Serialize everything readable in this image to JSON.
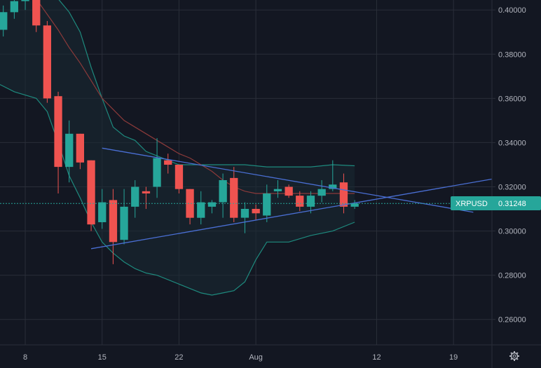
{
  "colors": {
    "background": "#131722",
    "grid": "#2a2e39",
    "up": "#26a69a",
    "down": "#ef5350",
    "band": "#1e8a7e",
    "band_fill": "#1a2a33",
    "basis": "#8b3a3a",
    "trendline": "#4a6fd4",
    "axis_text": "#b2b5be",
    "badge": "#26a69a"
  },
  "icons": {
    "settings": "gear-icon"
  },
  "price_badge": {
    "symbol": "XRPUSD",
    "price": "0.31248"
  },
  "chart_data": {
    "type": "candlestick",
    "symbol": "XRPUSD",
    "ylim": [
      0.2485,
      0.4045
    ],
    "y_ticks": [
      "0.40000",
      "0.38000",
      "0.36000",
      "0.34000",
      "0.32000",
      "0.30000",
      "0.28000",
      "0.26000"
    ],
    "x_ticks": [
      {
        "label": "8",
        "day": 8
      },
      {
        "label": "15",
        "day": 15
      },
      {
        "label": "22",
        "day": 22
      },
      {
        "label": "Aug",
        "day": 29
      },
      {
        "label": "12",
        "day": 40
      },
      {
        "label": "19",
        "day": 47
      }
    ],
    "x_range_days": [
      5.7,
      50.5
    ],
    "last_price": 0.31248,
    "candles": [
      {
        "day": 5,
        "o": 0.38,
        "h": 0.393,
        "l": 0.377,
        "c": 0.391
      },
      {
        "day": 6,
        "o": 0.391,
        "h": 0.402,
        "l": 0.388,
        "c": 0.399
      },
      {
        "day": 7,
        "o": 0.399,
        "h": 0.412,
        "l": 0.396,
        "c": 0.404
      },
      {
        "day": 8,
        "o": 0.404,
        "h": 0.415,
        "l": 0.4,
        "c": 0.408
      },
      {
        "day": 9,
        "o": 0.408,
        "h": 0.411,
        "l": 0.39,
        "c": 0.393
      },
      {
        "day": 10,
        "o": 0.393,
        "h": 0.395,
        "l": 0.358,
        "c": 0.36
      },
      {
        "day": 11,
        "o": 0.361,
        "h": 0.363,
        "l": 0.317,
        "c": 0.329
      },
      {
        "day": 12,
        "o": 0.329,
        "h": 0.35,
        "l": 0.322,
        "c": 0.344
      },
      {
        "day": 13,
        "o": 0.344,
        "h": 0.344,
        "l": 0.328,
        "c": 0.331
      },
      {
        "day": 14,
        "o": 0.332,
        "h": 0.332,
        "l": 0.3,
        "c": 0.303
      },
      {
        "day": 15,
        "o": 0.304,
        "h": 0.319,
        "l": 0.301,
        "c": 0.313
      },
      {
        "day": 16,
        "o": 0.314,
        "h": 0.319,
        "l": 0.285,
        "c": 0.295
      },
      {
        "day": 17,
        "o": 0.296,
        "h": 0.319,
        "l": 0.294,
        "c": 0.311
      },
      {
        "day": 18,
        "o": 0.311,
        "h": 0.323,
        "l": 0.306,
        "c": 0.32
      },
      {
        "day": 19,
        "o": 0.318,
        "h": 0.32,
        "l": 0.31,
        "c": 0.317
      },
      {
        "day": 20,
        "o": 0.32,
        "h": 0.342,
        "l": 0.315,
        "c": 0.333
      },
      {
        "day": 21,
        "o": 0.332,
        "h": 0.335,
        "l": 0.326,
        "c": 0.33
      },
      {
        "day": 22,
        "o": 0.33,
        "h": 0.33,
        "l": 0.317,
        "c": 0.319
      },
      {
        "day": 23,
        "o": 0.319,
        "h": 0.319,
        "l": 0.303,
        "c": 0.306
      },
      {
        "day": 24,
        "o": 0.306,
        "h": 0.318,
        "l": 0.303,
        "c": 0.313
      },
      {
        "day": 25,
        "o": 0.311,
        "h": 0.314,
        "l": 0.308,
        "c": 0.313
      },
      {
        "day": 26,
        "o": 0.313,
        "h": 0.326,
        "l": 0.306,
        "c": 0.323
      },
      {
        "day": 27,
        "o": 0.324,
        "h": 0.329,
        "l": 0.304,
        "c": 0.306
      },
      {
        "day": 28,
        "o": 0.306,
        "h": 0.313,
        "l": 0.299,
        "c": 0.31
      },
      {
        "day": 29,
        "o": 0.31,
        "h": 0.312,
        "l": 0.305,
        "c": 0.308
      },
      {
        "day": 30,
        "o": 0.307,
        "h": 0.321,
        "l": 0.304,
        "c": 0.317
      },
      {
        "day": 31,
        "o": 0.318,
        "h": 0.323,
        "l": 0.315,
        "c": 0.319
      },
      {
        "day": 32,
        "o": 0.32,
        "h": 0.321,
        "l": 0.315,
        "c": 0.316
      },
      {
        "day": 33,
        "o": 0.316,
        "h": 0.318,
        "l": 0.309,
        "c": 0.311
      },
      {
        "day": 34,
        "o": 0.311,
        "h": 0.318,
        "l": 0.308,
        "c": 0.316
      },
      {
        "day": 35,
        "o": 0.316,
        "h": 0.323,
        "l": 0.313,
        "c": 0.319
      },
      {
        "day": 36,
        "o": 0.319,
        "h": 0.332,
        "l": 0.318,
        "c": 0.321
      },
      {
        "day": 37,
        "o": 0.322,
        "h": 0.326,
        "l": 0.308,
        "c": 0.311
      },
      {
        "day": 38,
        "o": 0.311,
        "h": 0.314,
        "l": 0.31,
        "c": 0.3125
      }
    ],
    "bollinger": {
      "upper": [
        [
          5,
          0.465
        ],
        [
          7,
          0.44
        ],
        [
          9,
          0.43
        ],
        [
          10,
          0.42
        ],
        [
          11,
          0.405
        ],
        [
          12,
          0.399
        ],
        [
          13,
          0.39
        ],
        [
          14,
          0.374
        ],
        [
          15,
          0.36
        ],
        [
          16,
          0.347
        ],
        [
          17,
          0.343
        ],
        [
          18,
          0.341
        ],
        [
          19,
          0.336
        ],
        [
          20,
          0.334
        ],
        [
          21,
          0.332
        ],
        [
          22,
          0.33
        ],
        [
          24,
          0.33
        ],
        [
          26,
          0.33
        ],
        [
          28,
          0.33
        ],
        [
          30,
          0.329
        ],
        [
          32,
          0.329
        ],
        [
          34,
          0.329
        ],
        [
          36,
          0.33
        ],
        [
          38,
          0.3295
        ]
      ],
      "basis": [
        [
          9,
          0.405
        ],
        [
          10,
          0.398
        ],
        [
          11,
          0.391
        ],
        [
          12,
          0.383
        ],
        [
          13,
          0.376
        ],
        [
          14,
          0.368
        ],
        [
          15,
          0.36
        ],
        [
          16,
          0.355
        ],
        [
          17,
          0.35
        ],
        [
          18,
          0.347
        ],
        [
          19,
          0.344
        ],
        [
          20,
          0.341
        ],
        [
          21,
          0.338
        ],
        [
          22,
          0.335
        ],
        [
          23,
          0.333
        ],
        [
          24,
          0.33
        ],
        [
          25,
          0.327
        ],
        [
          26,
          0.323
        ],
        [
          27,
          0.32
        ],
        [
          28,
          0.318
        ],
        [
          29,
          0.317
        ],
        [
          30,
          0.317
        ],
        [
          31,
          0.317
        ],
        [
          32,
          0.317
        ],
        [
          33,
          0.317
        ],
        [
          34,
          0.317
        ],
        [
          35,
          0.317
        ],
        [
          36,
          0.317
        ],
        [
          37,
          0.317
        ],
        [
          38,
          0.317
        ]
      ],
      "lower": [
        [
          5,
          0.368
        ],
        [
          7,
          0.363
        ],
        [
          9,
          0.36
        ],
        [
          10,
          0.354
        ],
        [
          11,
          0.34
        ],
        [
          12,
          0.325
        ],
        [
          13,
          0.315
        ],
        [
          14,
          0.304
        ],
        [
          15,
          0.295
        ],
        [
          16,
          0.29
        ],
        [
          17,
          0.286
        ],
        [
          18,
          0.283
        ],
        [
          19,
          0.281
        ],
        [
          20,
          0.28
        ],
        [
          22,
          0.276
        ],
        [
          24,
          0.272
        ],
        [
          25,
          0.271
        ],
        [
          26,
          0.272
        ],
        [
          27,
          0.273
        ],
        [
          28,
          0.277
        ],
        [
          29,
          0.287
        ],
        [
          30,
          0.295
        ],
        [
          32,
          0.295
        ],
        [
          34,
          0.298
        ],
        [
          36,
          0.3
        ],
        [
          38,
          0.304
        ]
      ]
    },
    "trendlines": [
      {
        "from": [
          15,
          0.3375
        ],
        "to": [
          48.8,
          0.3085
        ]
      },
      {
        "from": [
          14,
          0.292
        ],
        "to": [
          50.5,
          0.3235
        ]
      }
    ]
  }
}
